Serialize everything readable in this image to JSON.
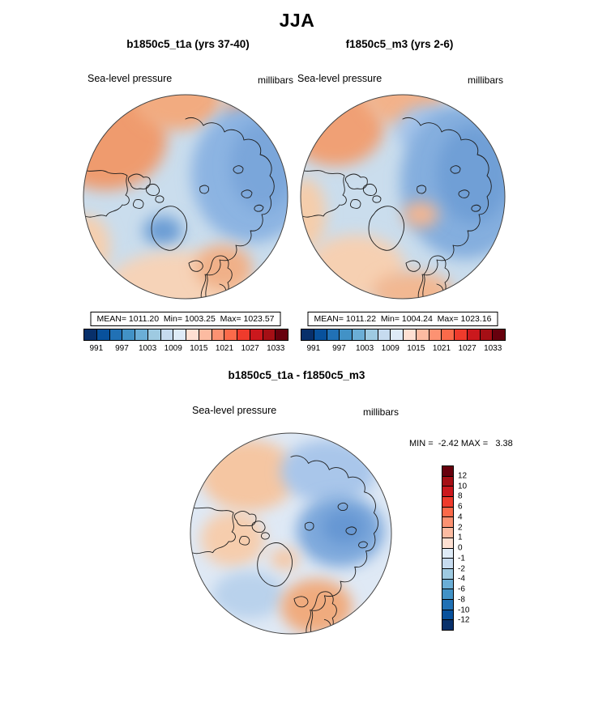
{
  "title": "JJA",
  "panels": {
    "left": {
      "title": "b1850c5_t1a (yrs 37-40)",
      "field": "Sea-level pressure",
      "units": "millibars",
      "stats": "MEAN= 1011.20  Min= 1003.25  Max= 1023.57"
    },
    "right": {
      "title": "f1850c5_m3 (yrs 2-6)",
      "field": "Sea-level pressure",
      "units": "millibars",
      "stats": "MEAN= 1011.22  Min= 1004.24  Max= 1023.16"
    },
    "diff": {
      "title": "b1850c5_t1a - f1850c5_m3",
      "field": "Sea-level pressure",
      "units": "millibars",
      "stats": "MIN =  -2.42 MAX =   3.38"
    }
  },
  "colorbar_top": {
    "colors": [
      "#08306b",
      "#08519c",
      "#2171b5",
      "#4292c6",
      "#6baed6",
      "#9ecae1",
      "#c6dbef",
      "#deebf7",
      "#fee0d2",
      "#fcbba1",
      "#fc9272",
      "#fb6a4a",
      "#ef3b2c",
      "#cb181d",
      "#a50f15",
      "#67000d"
    ],
    "ticks": [
      "991",
      "997",
      "1003",
      "1009",
      "1015",
      "1021",
      "1027",
      "1033"
    ]
  },
  "colorbar_diff": {
    "colors": [
      "#67000d",
      "#a50f15",
      "#cb181d",
      "#ef3b2c",
      "#fb6a4a",
      "#fc9272",
      "#fcbba1",
      "#fee0d2",
      "#deebf7",
      "#c6dbef",
      "#9ecae1",
      "#6baed6",
      "#4292c6",
      "#2171b5",
      "#08519c",
      "#08306b"
    ],
    "ticks": [
      "12",
      "10",
      "8",
      "6",
      "4",
      "2",
      "1",
      "0",
      "-1",
      "-2",
      "-4",
      "-6",
      "-8",
      "-10",
      "-12"
    ]
  },
  "chart_data": {
    "type": "heatmap",
    "title": "JJA",
    "projection": "north-polar-stereographic",
    "variable": "Sea-level pressure",
    "units": "millibars",
    "panels": [
      {
        "name": "b1850c5_t1a (yrs 37-40)",
        "mean": 1011.2,
        "min": 1003.25,
        "max": 1023.57,
        "contour_levels": [
          991,
          997,
          1003,
          1009,
          1015,
          1021,
          1027,
          1033
        ],
        "colorbar_orientation": "horizontal"
      },
      {
        "name": "f1850c5_m3 (yrs 2-6)",
        "mean": 1011.22,
        "min": 1004.24,
        "max": 1023.16,
        "contour_levels": [
          991,
          997,
          1003,
          1009,
          1015,
          1021,
          1027,
          1033
        ],
        "colorbar_orientation": "horizontal"
      },
      {
        "name": "b1850c5_t1a - f1850c5_m3",
        "min": -2.42,
        "max": 3.38,
        "contour_levels": [
          12,
          10,
          8,
          6,
          4,
          2,
          1,
          0,
          -1,
          -2,
          -4,
          -6,
          -8,
          -10,
          -12
        ],
        "colorbar_orientation": "vertical"
      }
    ]
  }
}
